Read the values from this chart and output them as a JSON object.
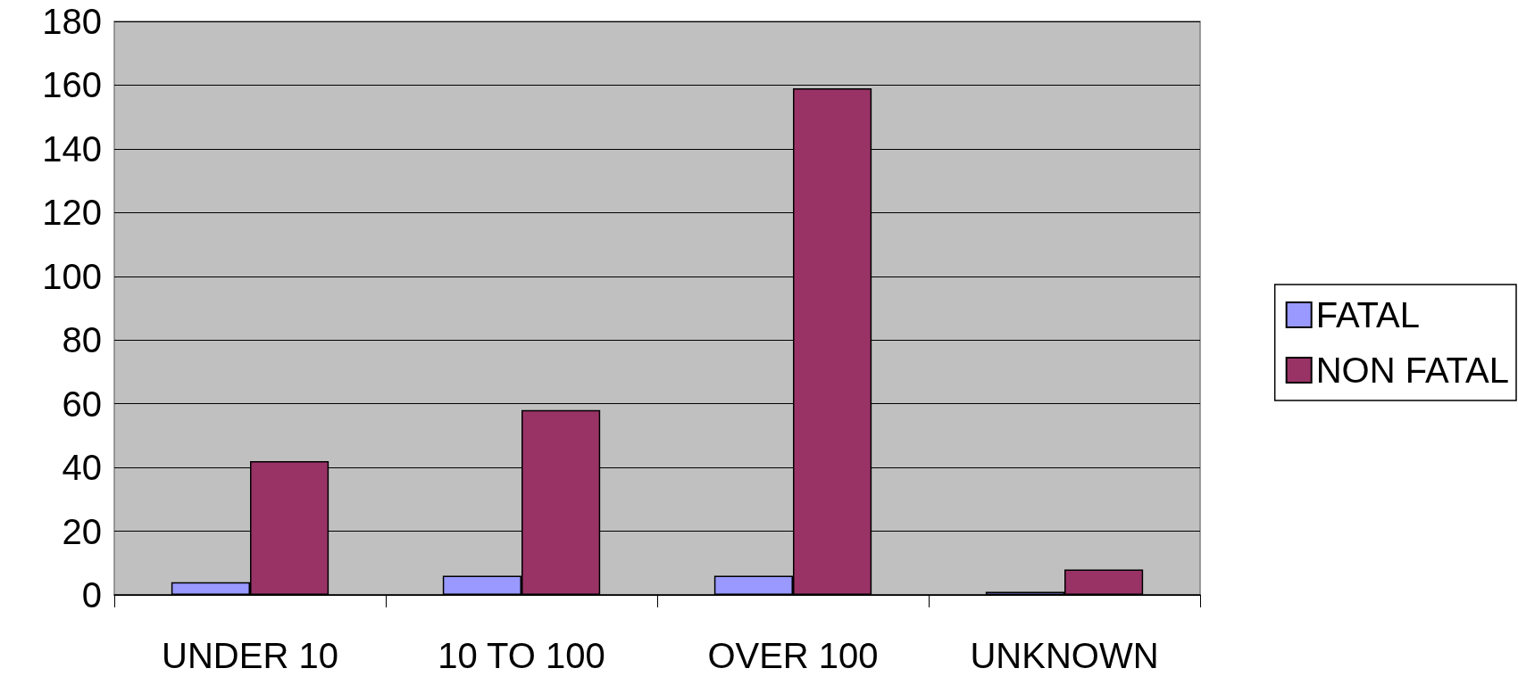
{
  "chart_data": {
    "type": "bar",
    "categories": [
      "UNDER 10",
      "10 TO 100",
      "OVER 100",
      "UNKNOWN"
    ],
    "series": [
      {
        "name": "FATAL",
        "color": "#9999ff",
        "values": [
          4,
          6,
          6,
          1
        ]
      },
      {
        "name": "NON FATAL",
        "color": "#993366",
        "values": [
          42,
          58,
          159,
          8
        ]
      }
    ],
    "ylim": [
      0,
      180
    ],
    "yticks": [
      0,
      20,
      40,
      60,
      80,
      100,
      120,
      140,
      160,
      180
    ],
    "grid": "y",
    "legend": "right"
  }
}
